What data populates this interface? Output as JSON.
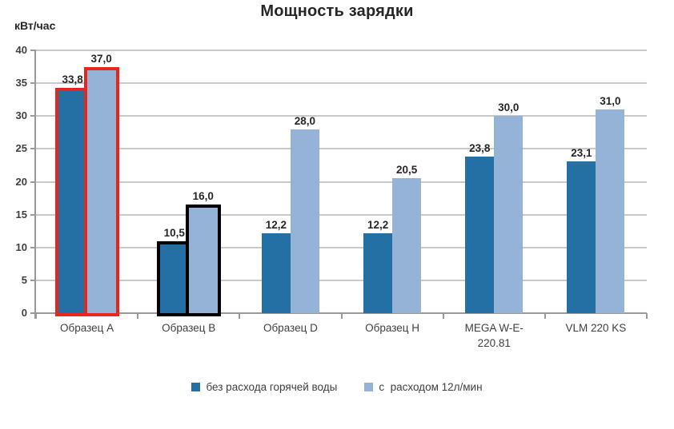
{
  "title": "Мощность зарядки",
  "y_axis_unit": "кВт/час",
  "chart_data": {
    "type": "bar",
    "categories": [
      "Образец A",
      "Образец B",
      "Образец D",
      "Образец H",
      "MEGA W-E-220.81",
      "VLM 220 KS"
    ],
    "series": [
      {
        "name": "без расхода горячей воды",
        "color": "#2470A4",
        "values": [
          33.8,
          10.5,
          12.2,
          12.2,
          23.8,
          23.1
        ],
        "labels": [
          "33,8",
          "10,5",
          "12,2",
          "12,2",
          "23,8",
          "23,1"
        ]
      },
      {
        "name": "с  расходом 12л/мин",
        "color": "#95B3D7",
        "values": [
          37.0,
          16.0,
          28.0,
          20.5,
          30.0,
          31.0
        ],
        "labels": [
          "37,0",
          "16,0",
          "28,0",
          "20,5",
          "30,0",
          "31,0"
        ]
      }
    ],
    "ylim": [
      0,
      40
    ],
    "yticks": [
      0,
      5,
      10,
      15,
      20,
      25,
      30,
      35,
      40
    ],
    "grid": true,
    "legend_position": "bottom",
    "highlights": [
      {
        "category_index": 0,
        "outline_color": "#E5261F"
      },
      {
        "category_index": 1,
        "outline_color": "#000000"
      }
    ],
    "colors": {
      "gridline": "#C9C9C9",
      "axis": "#9A9A9A",
      "tick": "#9A9A9A",
      "value_label_text": "#262626",
      "tick_label_text": "#404040",
      "category_label_text": "#404040",
      "legend_text": "#404040",
      "title_text": "#262626"
    }
  }
}
